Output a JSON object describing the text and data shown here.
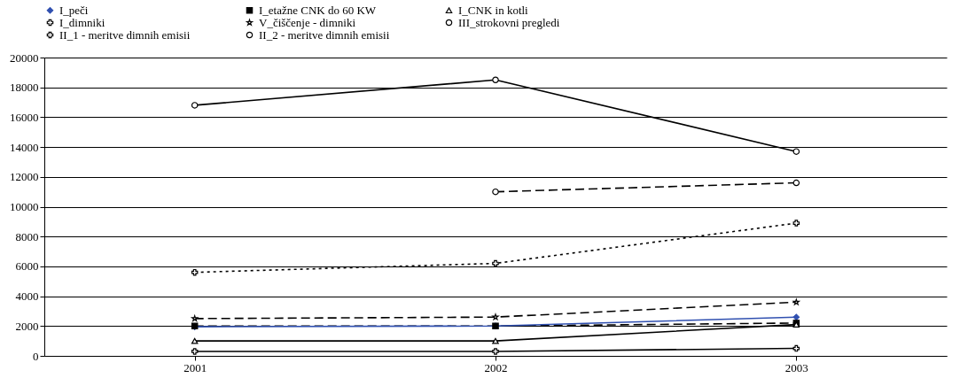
{
  "chart_data": {
    "type": "line",
    "categories": [
      "2001",
      "2002",
      "2003"
    ],
    "ylim": [
      0,
      20000
    ],
    "yticks": [
      0,
      2000,
      4000,
      6000,
      8000,
      10000,
      12000,
      14000,
      16000,
      18000,
      20000
    ],
    "grid": "y",
    "legend": "top",
    "series": [
      {
        "name": "I_peči",
        "color": "#3050b0",
        "marker": "diamond",
        "line_style": "solid",
        "values": [
          1950,
          2000,
          2600
        ]
      },
      {
        "name": "I_etažne CNK do 60 KW",
        "color": "#000000",
        "marker": "square",
        "line_style": "dashed",
        "values": [
          2000,
          2000,
          2200
        ]
      },
      {
        "name": "I_CNK in kotli",
        "color": "#000000",
        "marker": "triangle",
        "line_style": "solid",
        "values": [
          1000,
          1000,
          2100
        ]
      },
      {
        "name": "I_dimniki",
        "color": "#000000",
        "marker": "cross",
        "line_style": "solid",
        "values": [
          300,
          300,
          500
        ]
      },
      {
        "name": "V_čiščenje - dimniki",
        "color": "#000000",
        "marker": "star",
        "line_style": "dashed",
        "values": [
          2500,
          2600,
          3600
        ]
      },
      {
        "name": "III_strokovni pregledi",
        "color": "#000000",
        "marker": "circle",
        "line_style": "solid",
        "values": [
          16800,
          18500,
          13700
        ]
      },
      {
        "name": "II_1 - meritve dimnih emisii",
        "color": "#000000",
        "marker": "cross",
        "line_style": "dotted",
        "values": [
          5600,
          6200,
          8900
        ]
      },
      {
        "name": "II_2 - meritve dimnih emisii",
        "color": "#000000",
        "marker": "circle",
        "line_style": "dashed",
        "values": [
          null,
          11000,
          11600
        ]
      }
    ]
  }
}
